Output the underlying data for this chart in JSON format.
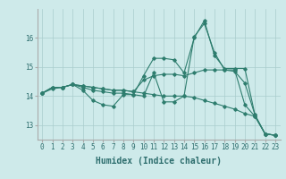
{
  "x": [
    0,
    1,
    2,
    3,
    4,
    5,
    6,
    7,
    8,
    9,
    10,
    11,
    12,
    13,
    14,
    15,
    16,
    17,
    18,
    19,
    20,
    21,
    22,
    23
  ],
  "series": [
    [
      14.1,
      14.3,
      14.3,
      14.4,
      14.2,
      13.85,
      13.7,
      13.65,
      14.05,
      14.05,
      14.0,
      14.8,
      13.8,
      13.8,
      14.0,
      16.05,
      16.5,
      15.5,
      14.9,
      14.9,
      13.7,
      13.3,
      12.7,
      12.65
    ],
    [
      14.1,
      14.3,
      14.3,
      14.4,
      14.3,
      14.2,
      14.15,
      14.1,
      14.1,
      14.05,
      14.7,
      15.3,
      15.3,
      15.25,
      14.8,
      16.0,
      16.6,
      15.4,
      14.95,
      14.95,
      14.95,
      13.35,
      12.7,
      12.65
    ],
    [
      14.1,
      14.3,
      14.3,
      14.4,
      14.35,
      14.3,
      14.25,
      14.2,
      14.2,
      14.15,
      14.55,
      14.7,
      14.75,
      14.75,
      14.7,
      14.8,
      14.9,
      14.9,
      14.9,
      14.85,
      14.45,
      13.35,
      12.7,
      12.65
    ],
    [
      14.1,
      14.25,
      14.3,
      14.4,
      14.35,
      14.3,
      14.25,
      14.2,
      14.2,
      14.15,
      14.1,
      14.05,
      14.0,
      14.0,
      14.0,
      13.95,
      13.85,
      13.75,
      13.65,
      13.55,
      13.4,
      13.3,
      12.7,
      12.65
    ]
  ],
  "line_color": "#2e7d6e",
  "bg_color": "#ceeaea",
  "grid_color": "#aacccc",
  "xlabel": "Humidex (Indice chaleur)",
  "ylim": [
    12.5,
    17.0
  ],
  "xlim": [
    -0.5,
    23.5
  ],
  "yticks": [
    13,
    14,
    15,
    16
  ],
  "xticks": [
    0,
    1,
    2,
    3,
    4,
    5,
    6,
    7,
    8,
    9,
    10,
    11,
    12,
    13,
    14,
    15,
    16,
    17,
    18,
    19,
    20,
    21,
    22,
    23
  ],
  "marker": "D",
  "markersize": 1.8,
  "linewidth": 0.8,
  "tick_fontsize": 5.5,
  "label_fontsize": 7.0
}
